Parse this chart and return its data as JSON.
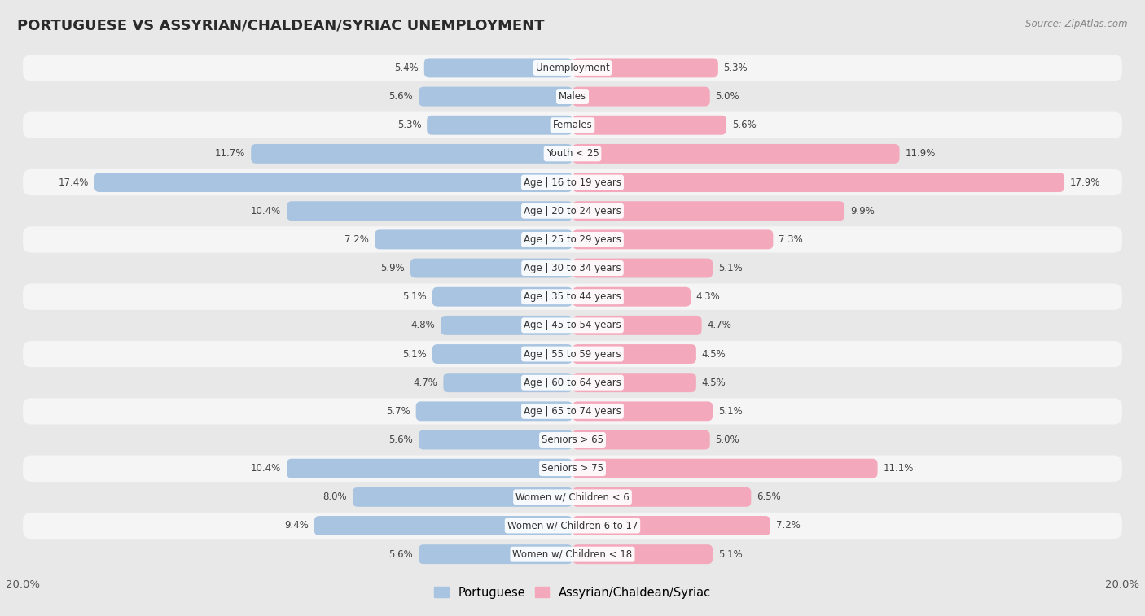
{
  "title": "PORTUGUESE VS ASSYRIAN/CHALDEAN/SYRIAC UNEMPLOYMENT",
  "source": "Source: ZipAtlas.com",
  "categories": [
    "Unemployment",
    "Males",
    "Females",
    "Youth < 25",
    "Age | 16 to 19 years",
    "Age | 20 to 24 years",
    "Age | 25 to 29 years",
    "Age | 30 to 34 years",
    "Age | 35 to 44 years",
    "Age | 45 to 54 years",
    "Age | 55 to 59 years",
    "Age | 60 to 64 years",
    "Age | 65 to 74 years",
    "Seniors > 65",
    "Seniors > 75",
    "Women w/ Children < 6",
    "Women w/ Children 6 to 17",
    "Women w/ Children < 18"
  ],
  "portuguese": [
    5.4,
    5.6,
    5.3,
    11.7,
    17.4,
    10.4,
    7.2,
    5.9,
    5.1,
    4.8,
    5.1,
    4.7,
    5.7,
    5.6,
    10.4,
    8.0,
    9.4,
    5.6
  ],
  "assyrian": [
    5.3,
    5.0,
    5.6,
    11.9,
    17.9,
    9.9,
    7.3,
    5.1,
    4.3,
    4.7,
    4.5,
    4.5,
    5.1,
    5.0,
    11.1,
    6.5,
    7.2,
    5.1
  ],
  "portuguese_color": "#a8c4e0",
  "assyrian_color": "#f4a8bc",
  "background_color": "#e8e8e8",
  "row_color_light": "#f5f5f5",
  "row_color_dark": "#e8e8e8",
  "max_val": 20.0,
  "legend_portuguese": "Portuguese",
  "legend_assyrian": "Assyrian/Chaldean/Syriac"
}
